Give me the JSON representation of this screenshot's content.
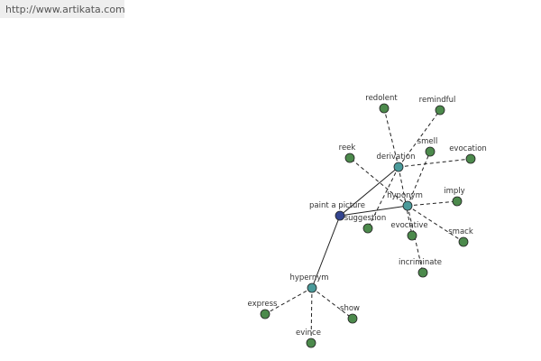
{
  "url": "http://www.artikata.com",
  "nodes": [
    {
      "label": "paint a picture"
    },
    {
      "label": "derivation"
    },
    {
      "label": "hyponym"
    },
    {
      "label": "hypernym"
    },
    {
      "label": "redolent"
    },
    {
      "label": "remindful"
    },
    {
      "label": "smell"
    },
    {
      "label": "evocation"
    },
    {
      "label": "reek"
    },
    {
      "label": "imply"
    },
    {
      "label": "suggestion"
    },
    {
      "label": "evocative"
    },
    {
      "label": "smack"
    },
    {
      "label": "incriminate"
    },
    {
      "label": "express"
    },
    {
      "label": "show"
    },
    {
      "label": "evince"
    }
  ]
}
